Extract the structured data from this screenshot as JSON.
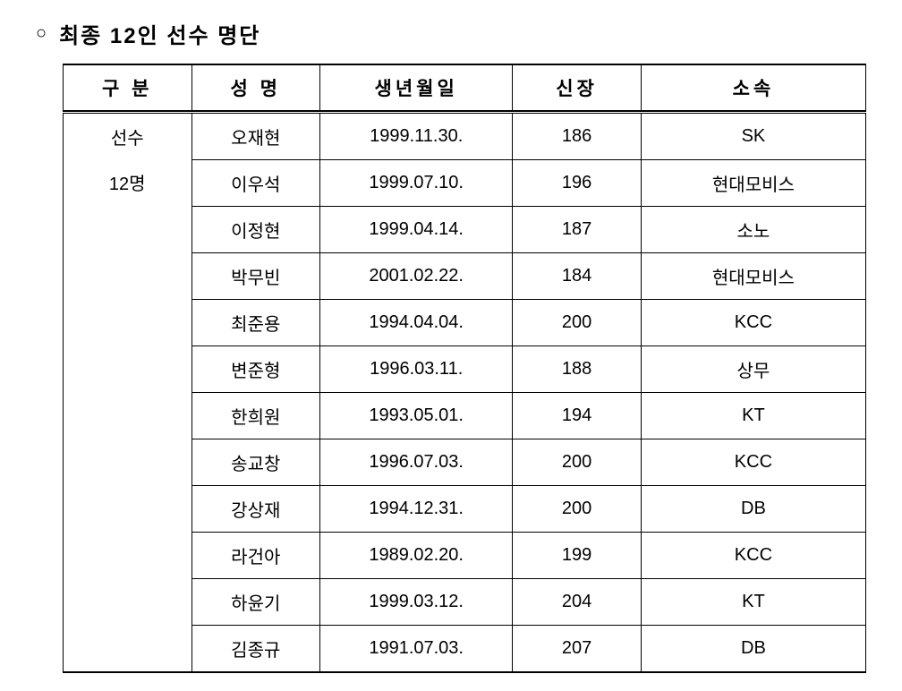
{
  "title": {
    "bullet": "○",
    "text": "최종 12인 선수 명단"
  },
  "table": {
    "columns": [
      "구 분",
      "성  명",
      "생년월일",
      "신장",
      "소속"
    ],
    "category": {
      "line1": "선수",
      "line2": "12명"
    },
    "rows": [
      {
        "name": "오재현",
        "dob": "1999.11.30.",
        "height": "186",
        "team": "SK"
      },
      {
        "name": "이우석",
        "dob": "1999.07.10.",
        "height": "196",
        "team": "현대모비스"
      },
      {
        "name": "이정현",
        "dob": "1999.04.14.",
        "height": "187",
        "team": "소노"
      },
      {
        "name": "박무빈",
        "dob": "2001.02.22.",
        "height": "184",
        "team": "현대모비스"
      },
      {
        "name": "최준용",
        "dob": "1994.04.04.",
        "height": "200",
        "team": "KCC"
      },
      {
        "name": "변준형",
        "dob": "1996.03.11.",
        "height": "188",
        "team": "상무"
      },
      {
        "name": "한희원",
        "dob": "1993.05.01.",
        "height": "194",
        "team": "KT"
      },
      {
        "name": "송교창",
        "dob": "1996.07.03.",
        "height": "200",
        "team": "KCC"
      },
      {
        "name": "강상재",
        "dob": "1994.12.31.",
        "height": "200",
        "team": "DB"
      },
      {
        "name": "라건아",
        "dob": "1989.02.20.",
        "height": "199",
        "team": "KCC"
      },
      {
        "name": "하윤기",
        "dob": "1999.03.12.",
        "height": "204",
        "team": "KT"
      },
      {
        "name": "김종규",
        "dob": "1991.07.03.",
        "height": "207",
        "team": "DB"
      }
    ]
  },
  "style": {
    "text_color": "#000000",
    "border_color": "#000000",
    "background": "#ffffff"
  }
}
